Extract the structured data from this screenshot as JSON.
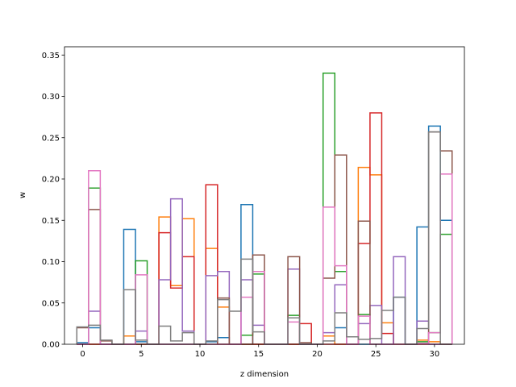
{
  "chart_data": {
    "type": "step",
    "xlabel": "z dimension",
    "ylabel": "w",
    "xlim": [
      -1.55,
      32.55
    ],
    "ylim": [
      0,
      0.36
    ],
    "xticks": [
      0,
      5,
      10,
      15,
      20,
      25,
      30
    ],
    "yticks": [
      0.0,
      0.05,
      0.1,
      0.15,
      0.2,
      0.25,
      0.3,
      0.35
    ],
    "ytick_labels": [
      "0.00",
      "0.05",
      "0.10",
      "0.15",
      "0.20",
      "0.25",
      "0.30",
      "0.35"
    ],
    "grid": false,
    "legend": "none",
    "series": [
      {
        "color": "#1f77b4",
        "values": [
          0.002,
          0.02,
          0,
          0,
          0.139,
          0.003,
          0,
          0,
          0,
          0,
          0,
          0.003,
          0.008,
          0,
          0.169,
          0,
          0,
          0,
          0,
          0,
          0,
          0.01,
          0.02,
          0,
          0,
          0,
          0,
          0.057,
          0,
          0.142,
          0.264,
          0.15
        ]
      },
      {
        "color": "#ff7f0e",
        "values": [
          0,
          0,
          0,
          0,
          0.01,
          0,
          0,
          0.154,
          0.071,
          0.152,
          0,
          0.116,
          0.045,
          0,
          0,
          0,
          0,
          0,
          0,
          0,
          0,
          0.01,
          0,
          0,
          0.214,
          0.205,
          0.026,
          0,
          0,
          0.005,
          0.003,
          0
        ]
      },
      {
        "color": "#2ca02c",
        "values": [
          0,
          0.189,
          0,
          0,
          0,
          0.101,
          0,
          0,
          0,
          0,
          0,
          0,
          0,
          0,
          0.011,
          0.085,
          0,
          0,
          0.035,
          0,
          0,
          0.328,
          0.088,
          0,
          0.036,
          0,
          0,
          0,
          0,
          0.003,
          0.014,
          0.133
        ]
      },
      {
        "color": "#d62728",
        "values": [
          0,
          0,
          0,
          0,
          0,
          0,
          0,
          0.135,
          0.068,
          0.106,
          0,
          0.193,
          0,
          0,
          0,
          0,
          0,
          0,
          0,
          0.025,
          0,
          0,
          0,
          0,
          0.122,
          0.28,
          0.013,
          0,
          0,
          0,
          0,
          0
        ]
      },
      {
        "color": "#9467bd",
        "values": [
          0,
          0.04,
          0,
          0,
          0,
          0.016,
          0,
          0.078,
          0.176,
          0.016,
          0,
          0.083,
          0.088,
          0,
          0.078,
          0.023,
          0,
          0,
          0.091,
          0,
          0,
          0.014,
          0.072,
          0,
          0.025,
          0.047,
          0,
          0.106,
          0,
          0.028,
          0,
          0
        ]
      },
      {
        "color": "#8c564b",
        "values": [
          0.02,
          0.163,
          0.004,
          0,
          0,
          0,
          0,
          0,
          0,
          0,
          0,
          0,
          0.056,
          0,
          0,
          0.108,
          0,
          0,
          0.106,
          0.002,
          0,
          0.08,
          0.229,
          0,
          0.149,
          0,
          0,
          0,
          0,
          0.001,
          0.257,
          0.234
        ]
      },
      {
        "color": "#e377c2",
        "values": [
          0,
          0.21,
          0,
          0,
          0,
          0.084,
          0,
          0,
          0,
          0,
          0,
          0,
          0,
          0,
          0.057,
          0.088,
          0,
          0,
          0.027,
          0,
          0,
          0.166,
          0.095,
          0,
          0.034,
          0,
          0,
          0,
          0,
          0.001,
          0.014,
          0.206
        ]
      },
      {
        "color": "#7f7f7f",
        "values": [
          0.021,
          0.023,
          0.005,
          0,
          0.066,
          0.005,
          0,
          0.022,
          0.004,
          0.014,
          0,
          0.004,
          0.054,
          0.04,
          0.103,
          0.015,
          0,
          0,
          0.032,
          0,
          0,
          0.004,
          0.038,
          0.009,
          0.006,
          0.007,
          0.041,
          0.057,
          0,
          0.019,
          0.257,
          0
        ]
      }
    ]
  }
}
